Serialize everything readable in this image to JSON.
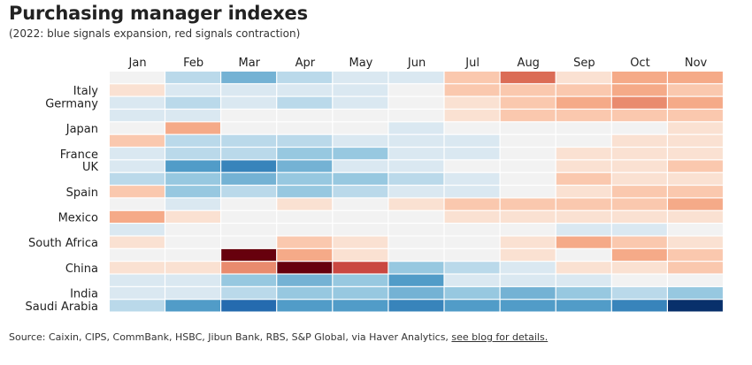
{
  "title": "Purchasing manager indexes",
  "subtitle": "(2022: blue signals expansion, red signals contraction)",
  "source": {
    "text": "Source: Caixin, CIPS, CommBank, HSBC, Jibun Bank, RBS, S&P Global, via Haver Analytics, ",
    "link": "see blog for details."
  },
  "colors": {
    "expansion_max": "#08306b",
    "neutral": "#f2f2f2",
    "contraction_max": "#67000d"
  },
  "chart_data": {
    "type": "heatmap",
    "title": "Purchasing manager indexes",
    "subtitle": "(2022: blue signals expansion, red signals contraction)",
    "categories": [
      "Jan",
      "Feb",
      "Mar",
      "Apr",
      "May",
      "Jun",
      "Jul",
      "Aug",
      "Sep",
      "Oct",
      "Nov"
    ],
    "row_labels": [
      "Italy",
      "Germany",
      "Japan",
      "France",
      "UK",
      "Spain",
      "Mexico",
      "South Africa",
      "China",
      "India",
      "Saudi Arabia"
    ],
    "rows": [
      {
        "values": [
          0,
          2,
          4,
          2,
          1,
          1,
          -2,
          -5,
          -1,
          -3,
          -3
        ]
      },
      {
        "label": "Italy",
        "values": [
          -1,
          1,
          1,
          1,
          1,
          0,
          -2,
          -2,
          -2,
          -3,
          -2
        ]
      },
      {
        "label": "Germany",
        "values": [
          1,
          2,
          1,
          2,
          1,
          0,
          -1,
          -2,
          -3,
          -4,
          -3
        ]
      },
      {
        "values": [
          1,
          1,
          0,
          0,
          0,
          0,
          -1,
          -2,
          -2,
          -2,
          -2
        ]
      },
      {
        "label": "Japan",
        "values": [
          0,
          -3,
          0,
          0,
          0,
          1,
          0,
          0,
          0,
          0,
          -1
        ]
      },
      {
        "values": [
          -2,
          2,
          2,
          2,
          1,
          1,
          1,
          0,
          0,
          -1,
          -1
        ]
      },
      {
        "label": "France",
        "values": [
          1,
          2,
          2,
          3,
          3,
          1,
          1,
          0,
          -1,
          -1,
          -1
        ]
      },
      {
        "label": "UK",
        "values": [
          1,
          5,
          6,
          4,
          1,
          1,
          0,
          0,
          -1,
          -1,
          -2
        ]
      },
      {
        "values": [
          2,
          3,
          4,
          3,
          3,
          2,
          1,
          0,
          -2,
          -1,
          -1
        ]
      },
      {
        "label": "Spain",
        "values": [
          -2,
          3,
          2,
          3,
          2,
          1,
          1,
          0,
          -1,
          -2,
          -2
        ]
      },
      {
        "values": [
          0,
          1,
          0,
          -1,
          0,
          -1,
          -2,
          -2,
          -2,
          -2,
          -3
        ]
      },
      {
        "label": "Mexico",
        "values": [
          -3,
          -1,
          0,
          0,
          0,
          0,
          -1,
          -1,
          -1,
          -1,
          -1
        ]
      },
      {
        "values": [
          1,
          0,
          0,
          0,
          0,
          0,
          0,
          0,
          1,
          1,
          0
        ]
      },
      {
        "label": "South Africa",
        "values": [
          -1,
          0,
          0,
          -2,
          -1,
          0,
          0,
          -1,
          -3,
          -2,
          -1
        ]
      },
      {
        "values": [
          0,
          0,
          -9,
          -3,
          -1,
          0,
          0,
          -1,
          0,
          -3,
          -2
        ]
      },
      {
        "label": "China",
        "values": [
          -1,
          -1,
          -4,
          -9,
          -6,
          3,
          2,
          1,
          -1,
          -1,
          -2
        ]
      },
      {
        "values": [
          1,
          1,
          3,
          4,
          3,
          5,
          1,
          1,
          1,
          0,
          0
        ]
      },
      {
        "label": "India",
        "values": [
          1,
          1,
          2,
          3,
          3,
          4,
          3,
          4,
          3,
          2,
          3
        ]
      },
      {
        "label": "Saudi Arabia",
        "values": [
          2,
          5,
          7,
          5,
          5,
          6,
          5,
          5,
          5,
          6,
          9
        ]
      }
    ],
    "color_scale": "diverging blue (expansion) to red (contraction)",
    "value_range": [
      -9,
      9
    ],
    "legend": "none"
  }
}
